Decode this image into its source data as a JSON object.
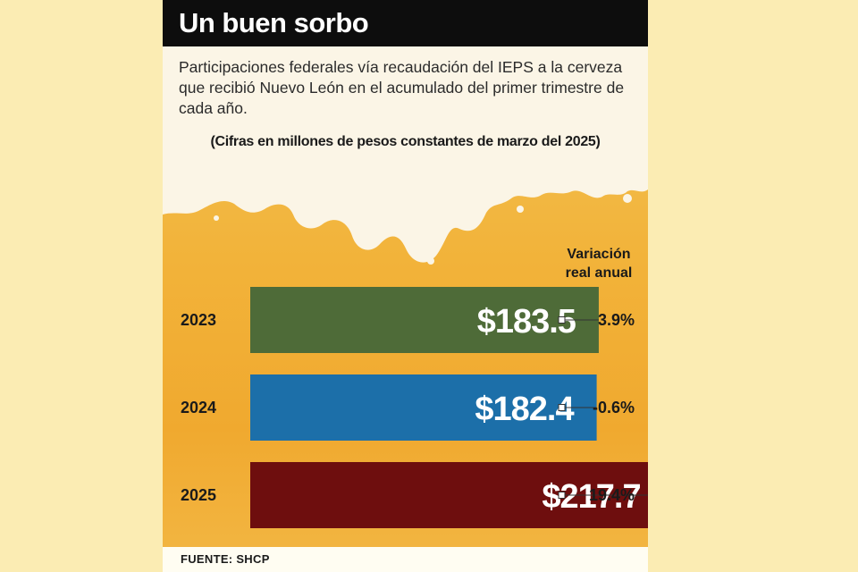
{
  "header": {
    "title": "Un buen sorbo",
    "subtitle": "Participaciones federales vía recaudación del IEPS a la cerveza que recibió Nuevo León en el acumulado del primer trimestre de cada año.",
    "note": "(Cifras en millones de pesos constantes de marzo del 2025)"
  },
  "footer": {
    "source": "FUENTE: SHCP"
  },
  "colors": {
    "panel_bg": "#f2b33a",
    "outer_bg": "#fbecb3",
    "title_bar": "#0d0d0d"
  },
  "chart_data": {
    "type": "bar",
    "orientation": "horizontal",
    "categories": [
      "2023",
      "2024",
      "2025"
    ],
    "values": [
      183.5,
      182.4,
      217.7
    ],
    "value_labels": [
      "$183.5",
      "$182.4",
      "$217.7"
    ],
    "bar_colors": [
      "#4e6b38",
      "#1c6fa9",
      "#6e0e0e"
    ],
    "variation_header": [
      "Variación",
      "real anual"
    ],
    "variation_labels": [
      "3.9%",
      "-0.6%",
      "19.4%"
    ],
    "variation": [
      3.9,
      -0.6,
      19.4
    ],
    "xlim": [
      0,
      240
    ],
    "grid": false
  }
}
